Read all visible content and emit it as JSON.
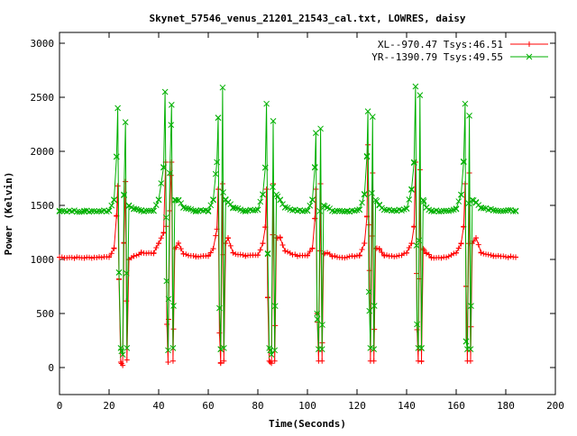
{
  "chart_data": {
    "type": "line",
    "title": "Skynet_57546_venus_21201_21543_cal.txt, LOWRES, daisy",
    "xlabel": "Time(Seconds)",
    "ylabel": "Power (Kelvin)",
    "xlim": [
      0,
      200
    ],
    "ylim": [
      -250,
      3100
    ],
    "x_ticks": [
      0,
      20,
      40,
      60,
      80,
      100,
      120,
      140,
      160,
      180,
      200
    ],
    "y_ticks": [
      0,
      500,
      1000,
      1500,
      2000,
      2500,
      3000
    ],
    "grid": false,
    "legend_position": "top-right",
    "series": [
      {
        "name": "XL--970.47 Tsys:46.51",
        "color": "#ff0000",
        "marker": "plus",
        "baseline": 1020,
        "x_range": [
          0,
          184
        ],
        "sample_step": 1,
        "key_points": [
          [
            0,
            1020
          ],
          [
            10,
            1015
          ],
          [
            20,
            1025
          ],
          [
            22,
            1100
          ],
          [
            23,
            1400
          ],
          [
            23.5,
            1680
          ],
          [
            24,
            820
          ],
          [
            24.7,
            50
          ],
          [
            25.5,
            20
          ],
          [
            26,
            1150
          ],
          [
            26.6,
            1720
          ],
          [
            27.2,
            70
          ],
          [
            28,
            1000
          ],
          [
            30,
            1030
          ],
          [
            33,
            1060
          ],
          [
            38,
            1060
          ],
          [
            40,
            1150
          ],
          [
            42,
            1250
          ],
          [
            42.8,
            1900
          ],
          [
            43.3,
            400
          ],
          [
            43.8,
            50
          ],
          [
            44.5,
            1450
          ],
          [
            45.2,
            1900
          ],
          [
            45.8,
            60
          ],
          [
            46.5,
            1100
          ],
          [
            48,
            1150
          ],
          [
            50,
            1050
          ],
          [
            55,
            1030
          ],
          [
            60,
            1030
          ],
          [
            62,
            1100
          ],
          [
            63.5,
            1280
          ],
          [
            64,
            1650
          ],
          [
            64.5,
            320
          ],
          [
            65,
            40
          ],
          [
            65.8,
            1700
          ],
          [
            66.3,
            60
          ],
          [
            67,
            1150
          ],
          [
            68,
            1200
          ],
          [
            70,
            1060
          ],
          [
            75,
            1030
          ],
          [
            80,
            1040
          ],
          [
            82,
            1150
          ],
          [
            83,
            1300
          ],
          [
            83.5,
            1650
          ],
          [
            84,
            650
          ],
          [
            84.6,
            60
          ],
          [
            85.5,
            40
          ],
          [
            86.2,
            1700
          ],
          [
            86.8,
            60
          ],
          [
            87.5,
            1200
          ],
          [
            89,
            1200
          ],
          [
            91,
            1080
          ],
          [
            96,
            1030
          ],
          [
            100,
            1040
          ],
          [
            102,
            1100
          ],
          [
            103,
            1380
          ],
          [
            103.4,
            1650
          ],
          [
            103.9,
            500
          ],
          [
            104.5,
            60
          ],
          [
            105.3,
            1700
          ],
          [
            105.9,
            60
          ],
          [
            106.5,
            1050
          ],
          [
            108,
            1060
          ],
          [
            110,
            1030
          ],
          [
            116,
            1020
          ],
          [
            121,
            1040
          ],
          [
            123,
            1150
          ],
          [
            124,
            1400
          ],
          [
            124.4,
            2060
          ],
          [
            124.8,
            1320
          ],
          [
            125.4,
            60
          ],
          [
            126.3,
            1800
          ],
          [
            126.8,
            60
          ],
          [
            127.5,
            1100
          ],
          [
            129,
            1100
          ],
          [
            131,
            1040
          ],
          [
            136,
            1030
          ],
          [
            140,
            1060
          ],
          [
            142,
            1150
          ],
          [
            143,
            1300
          ],
          [
            143.6,
            1900
          ],
          [
            144.2,
            350
          ],
          [
            144.7,
            60
          ],
          [
            145.4,
            1830
          ],
          [
            146,
            60
          ],
          [
            146.7,
            1100
          ],
          [
            148,
            1060
          ],
          [
            150,
            1020
          ],
          [
            156,
            1020
          ],
          [
            160,
            1060
          ],
          [
            162,
            1150
          ],
          [
            163,
            1300
          ],
          [
            163.6,
            1700
          ],
          [
            164,
            750
          ],
          [
            164.5,
            60
          ],
          [
            165.3,
            1800
          ],
          [
            165.8,
            60
          ],
          [
            166.5,
            1150
          ],
          [
            168,
            1200
          ],
          [
            170,
            1060
          ],
          [
            175,
            1030
          ],
          [
            184,
            1020
          ]
        ]
      },
      {
        "name": "YR--1390.79 Tsys:49.55",
        "color": "#00b000",
        "marker": "cross",
        "baseline": 1450,
        "x_range": [
          0,
          184
        ],
        "sample_step": 1,
        "key_points": [
          [
            0,
            1450
          ],
          [
            10,
            1445
          ],
          [
            20,
            1450
          ],
          [
            22,
            1550
          ],
          [
            23,
            1950
          ],
          [
            23.5,
            2400
          ],
          [
            24,
            880
          ],
          [
            24.7,
            180
          ],
          [
            25.5,
            120
          ],
          [
            26,
            1600
          ],
          [
            26.6,
            2270
          ],
          [
            27.2,
            180
          ],
          [
            28,
            1500
          ],
          [
            30,
            1470
          ],
          [
            33,
            1450
          ],
          [
            38,
            1450
          ],
          [
            40,
            1550
          ],
          [
            42,
            1850
          ],
          [
            42.6,
            2550
          ],
          [
            43.2,
            800
          ],
          [
            43.8,
            160
          ],
          [
            44.5,
            1800
          ],
          [
            45.2,
            2430
          ],
          [
            45.8,
            180
          ],
          [
            46.5,
            1550
          ],
          [
            48,
            1550
          ],
          [
            50,
            1480
          ],
          [
            55,
            1450
          ],
          [
            60,
            1450
          ],
          [
            62,
            1550
          ],
          [
            63.5,
            1900
          ],
          [
            64,
            2310
          ],
          [
            64.5,
            550
          ],
          [
            65,
            170
          ],
          [
            65.8,
            2590
          ],
          [
            66.3,
            180
          ],
          [
            67,
            1550
          ],
          [
            68,
            1530
          ],
          [
            70,
            1480
          ],
          [
            75,
            1450
          ],
          [
            80,
            1460
          ],
          [
            82,
            1600
          ],
          [
            83,
            1850
          ],
          [
            83.5,
            2440
          ],
          [
            84,
            1050
          ],
          [
            84.6,
            180
          ],
          [
            85.5,
            120
          ],
          [
            86.2,
            2280
          ],
          [
            86.8,
            160
          ],
          [
            87.5,
            1600
          ],
          [
            89,
            1550
          ],
          [
            91,
            1480
          ],
          [
            96,
            1450
          ],
          [
            100,
            1450
          ],
          [
            102,
            1550
          ],
          [
            103,
            1850
          ],
          [
            103.4,
            2170
          ],
          [
            103.9,
            500
          ],
          [
            104.5,
            170
          ],
          [
            105.3,
            2210
          ],
          [
            105.9,
            170
          ],
          [
            106.5,
            1500
          ],
          [
            108,
            1480
          ],
          [
            110,
            1450
          ],
          [
            116,
            1445
          ],
          [
            121,
            1460
          ],
          [
            123,
            1600
          ],
          [
            124,
            1950
          ],
          [
            124.4,
            2370
          ],
          [
            124.8,
            700
          ],
          [
            125.4,
            180
          ],
          [
            126.3,
            2320
          ],
          [
            126.8,
            170
          ],
          [
            127.5,
            1550
          ],
          [
            129,
            1500
          ],
          [
            131,
            1460
          ],
          [
            136,
            1450
          ],
          [
            140,
            1470
          ],
          [
            142,
            1650
          ],
          [
            143,
            1900
          ],
          [
            143.6,
            2600
          ],
          [
            144.2,
            400
          ],
          [
            144.7,
            180
          ],
          [
            145.4,
            2520
          ],
          [
            146,
            180
          ],
          [
            146.7,
            1550
          ],
          [
            148,
            1480
          ],
          [
            150,
            1450
          ],
          [
            156,
            1450
          ],
          [
            160,
            1470
          ],
          [
            162,
            1600
          ],
          [
            163,
            1900
          ],
          [
            163.6,
            2440
          ],
          [
            164,
            240
          ],
          [
            164.5,
            170
          ],
          [
            165.3,
            2330
          ],
          [
            165.8,
            170
          ],
          [
            166.5,
            1550
          ],
          [
            168,
            1530
          ],
          [
            170,
            1480
          ],
          [
            175,
            1455
          ],
          [
            184,
            1450
          ]
        ]
      }
    ]
  }
}
